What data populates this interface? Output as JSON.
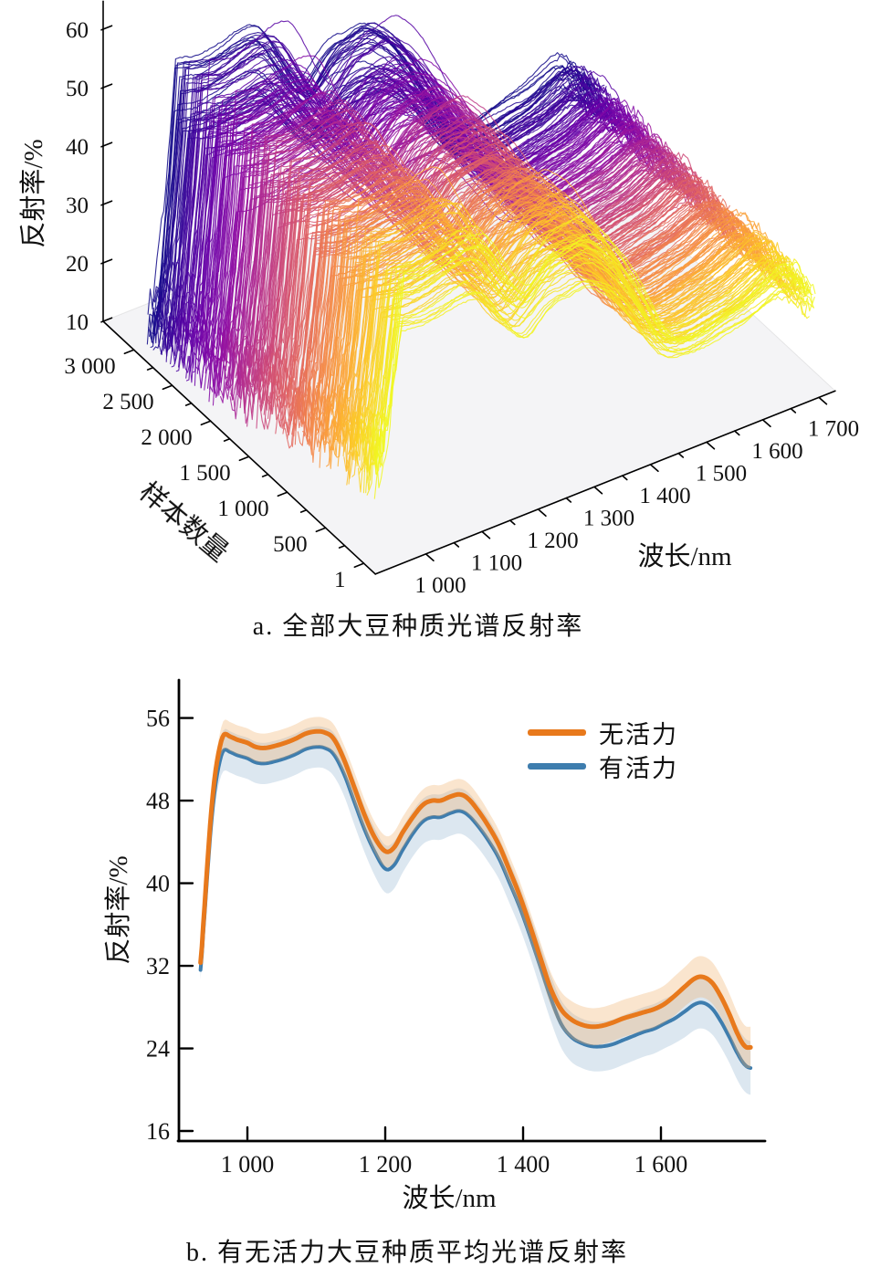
{
  "page": {
    "background": "#ffffff"
  },
  "figures": {
    "a": {
      "caption": "a. 全部大豆种质光谱反射率"
    },
    "b": {
      "caption": "b. 有无活力大豆种质平均光谱反射率"
    }
  },
  "chart_data": [
    {
      "type": "line3d-waterfall",
      "title": "",
      "xlabel": "波长/nm",
      "ylabel": "样本数量",
      "zlabel": "反射率/%",
      "x_ticks": {
        "values": [
          1000,
          1100,
          1200,
          1300,
          1400,
          1500,
          1600,
          1700
        ],
        "labels": [
          "1 000",
          "1 100",
          "1 200",
          "1 300",
          "1 400",
          "1 500",
          "1 600",
          "1 700"
        ]
      },
      "x_minor_ticks": [
        1050,
        1150,
        1250,
        1350,
        1450,
        1550,
        1650
      ],
      "y_ticks": {
        "values": [
          1,
          500,
          1000,
          1500,
          2000,
          2500,
          3000
        ],
        "labels": [
          "1",
          "500",
          "1 000",
          "1 500",
          "2 000",
          "2 500",
          "3 000"
        ]
      },
      "y_minor_ticks": [
        250,
        750,
        1250,
        1750,
        2250,
        2750
      ],
      "z_ticks": {
        "values": [
          10,
          20,
          30,
          40,
          50,
          60
        ],
        "labels": [
          "10",
          "20",
          "30",
          "40",
          "50",
          "60"
        ]
      },
      "xlim": [
        910,
        1729
      ],
      "ylim": [
        1,
        3000
      ],
      "zlim": [
        10,
        65
      ],
      "n_samples": 3000,
      "colormap": "plasma",
      "colormap_stops": [
        [
          0,
          "#0d0887"
        ],
        [
          0.1,
          "#41049d"
        ],
        [
          0.2,
          "#6a00a8"
        ],
        [
          0.3,
          "#8f0da4"
        ],
        [
          0.4,
          "#b12a90"
        ],
        [
          0.5,
          "#cc4778"
        ],
        [
          0.6,
          "#e16462"
        ],
        [
          0.7,
          "#f2844b"
        ],
        [
          0.8,
          "#fca636"
        ],
        [
          0.9,
          "#fcce25"
        ],
        [
          1,
          "#f0f921"
        ]
      ],
      "floor_color": "#f4f4f6",
      "mean_spectrum": {
        "wavelength_nm": [
          932,
          936,
          941,
          947,
          953,
          960,
          966,
          975,
          985,
          1000,
          1012,
          1025,
          1040,
          1055,
          1070,
          1085,
          1100,
          1112,
          1125,
          1140,
          1155,
          1170,
          1185,
          1200,
          1212,
          1225,
          1240,
          1255,
          1268,
          1280,
          1295,
          1308,
          1320,
          1335,
          1350,
          1365,
          1380,
          1395,
          1410,
          1425,
          1440,
          1455,
          1470,
          1485,
          1500,
          1515,
          1530,
          1545,
          1560,
          1575,
          1590,
          1605,
          1620,
          1635,
          1650,
          1662,
          1675,
          1688,
          1700,
          1712,
          1722,
          1730
        ],
        "reflectance_pct": [
          31.9,
          35.6,
          40.5,
          45.9,
          49.8,
          52.5,
          53.6,
          53.4,
          53.1,
          52.8,
          52.4,
          52.3,
          52.5,
          52.8,
          53.2,
          53.7,
          53.9,
          53.8,
          53.2,
          51.3,
          48.6,
          45.9,
          43.7,
          42.2,
          42.5,
          44.0,
          45.6,
          46.8,
          47.2,
          47.2,
          47.6,
          47.8,
          47.4,
          46.2,
          44.8,
          43.0,
          40.7,
          38.2,
          35.4,
          32.3,
          29.3,
          27.1,
          25.9,
          25.4,
          25.1,
          25.2,
          25.4,
          25.8,
          26.2,
          26.5,
          26.8,
          27.3,
          28.0,
          28.8,
          29.5,
          29.6,
          29.0,
          27.7,
          26.1,
          24.3,
          23.3,
          23.1
        ]
      },
      "spread": {
        "level_scale_min": 0.82,
        "level_scale_max": 1.12,
        "lines_drawn": 340,
        "line_alpha": 0.85,
        "start_noise_below": 982,
        "end_noise_above": 1640
      }
    },
    {
      "type": "line",
      "title": "",
      "xlabel": "波长/nm",
      "ylabel": "反射率/%",
      "grid": false,
      "legend_position": "upper right",
      "xlim": [
        899,
        1753
      ],
      "ylim": [
        15,
        59.7
      ],
      "x_ticks": {
        "values": [
          1000,
          1200,
          1400,
          1600
        ],
        "labels": [
          "1 000",
          "1 200",
          "1 400",
          "1 600"
        ]
      },
      "y_ticks": {
        "values": [
          16,
          24,
          32,
          40,
          48,
          56
        ],
        "labels": [
          "16",
          "24",
          "32",
          "40",
          "48",
          "56"
        ]
      },
      "x_shared": [
        932,
        936,
        941,
        947,
        953,
        960,
        966,
        975,
        985,
        1000,
        1012,
        1025,
        1040,
        1055,
        1070,
        1085,
        1100,
        1112,
        1125,
        1140,
        1155,
        1170,
        1185,
        1200,
        1212,
        1225,
        1240,
        1255,
        1268,
        1280,
        1295,
        1308,
        1320,
        1335,
        1350,
        1365,
        1380,
        1395,
        1410,
        1425,
        1440,
        1455,
        1470,
        1485,
        1500,
        1515,
        1530,
        1545,
        1560,
        1575,
        1590,
        1605,
        1620,
        1635,
        1650,
        1662,
        1675,
        1688,
        1700,
        1712,
        1722,
        1730
      ],
      "legend": [
        {
          "label": "无活力",
          "color": "#E8791C"
        },
        {
          "label": "有活力",
          "color": "#3E7DAE"
        }
      ],
      "series": [
        {
          "name": "有活力",
          "line_color": "#3E7DAE",
          "band_color": "rgba(130,169,201,0.28)",
          "y": [
            31.6,
            35.2,
            40.0,
            45.3,
            49.2,
            51.8,
            52.9,
            52.7,
            52.4,
            52.1,
            51.7,
            51.6,
            51.8,
            52.1,
            52.5,
            53.0,
            53.2,
            53.1,
            52.5,
            50.6,
            47.9,
            45.2,
            43.0,
            41.4,
            41.7,
            43.2,
            44.8,
            46.0,
            46.4,
            46.4,
            46.8,
            47.0,
            46.6,
            45.5,
            44.1,
            42.4,
            40.1,
            37.7,
            34.9,
            31.9,
            28.9,
            26.4,
            25.1,
            24.5,
            24.2,
            24.2,
            24.4,
            24.8,
            25.2,
            25.6,
            25.9,
            26.4,
            26.9,
            27.6,
            28.3,
            28.4,
            27.8,
            26.5,
            25.0,
            23.4,
            22.4,
            22.1
          ],
          "band_halfwidth": [
            0.9,
            1.0,
            1.2,
            1.4,
            1.6,
            1.8,
            2.0,
            2.0,
            2.0,
            2.0,
            2.0,
            2.0,
            2.0,
            2.0,
            2.0,
            2.0,
            2.0,
            2.0,
            2.1,
            2.1,
            2.2,
            2.2,
            2.3,
            2.3,
            2.3,
            2.2,
            2.2,
            2.2,
            2.2,
            2.2,
            2.2,
            2.2,
            2.2,
            2.1,
            2.1,
            2.0,
            2.0,
            2.0,
            2.0,
            2.1,
            2.2,
            2.3,
            2.4,
            2.4,
            2.4,
            2.4,
            2.4,
            2.4,
            2.4,
            2.4,
            2.4,
            2.4,
            2.4,
            2.5,
            2.5,
            2.5,
            2.5,
            2.5,
            2.5,
            2.6,
            2.6,
            2.6
          ]
        },
        {
          "name": "无活力",
          "line_color": "#E8791C",
          "band_color": "rgba(239,174,102,0.32)",
          "y": [
            32.3,
            36.0,
            41.0,
            46.5,
            50.5,
            53.2,
            54.4,
            54.2,
            53.9,
            53.6,
            53.2,
            53.1,
            53.3,
            53.6,
            54.0,
            54.5,
            54.7,
            54.6,
            54.0,
            52.0,
            49.3,
            46.6,
            44.4,
            43.1,
            43.4,
            44.9,
            46.4,
            47.6,
            48.0,
            48.0,
            48.4,
            48.6,
            48.2,
            47.0,
            45.5,
            43.7,
            41.3,
            38.8,
            35.9,
            32.8,
            29.8,
            27.8,
            26.8,
            26.3,
            26.1,
            26.2,
            26.5,
            26.9,
            27.2,
            27.5,
            27.8,
            28.3,
            29.1,
            30.0,
            30.8,
            30.9,
            30.3,
            28.9,
            27.2,
            25.3,
            24.2,
            24.1
          ],
          "band_halfwidth": [
            0.8,
            0.9,
            1.0,
            1.1,
            1.2,
            1.3,
            1.4,
            1.4,
            1.4,
            1.4,
            1.4,
            1.4,
            1.4,
            1.4,
            1.4,
            1.4,
            1.4,
            1.4,
            1.4,
            1.4,
            1.5,
            1.5,
            1.5,
            1.5,
            1.5,
            1.5,
            1.5,
            1.5,
            1.5,
            1.5,
            1.5,
            1.5,
            1.5,
            1.5,
            1.4,
            1.4,
            1.4,
            1.4,
            1.4,
            1.5,
            1.6,
            1.7,
            1.8,
            1.8,
            1.8,
            1.8,
            1.8,
            1.8,
            1.8,
            1.8,
            1.8,
            1.8,
            1.9,
            1.9,
            2.0,
            2.0,
            2.0,
            2.0,
            2.0,
            2.0,
            2.0,
            2.0
          ]
        }
      ]
    }
  ]
}
